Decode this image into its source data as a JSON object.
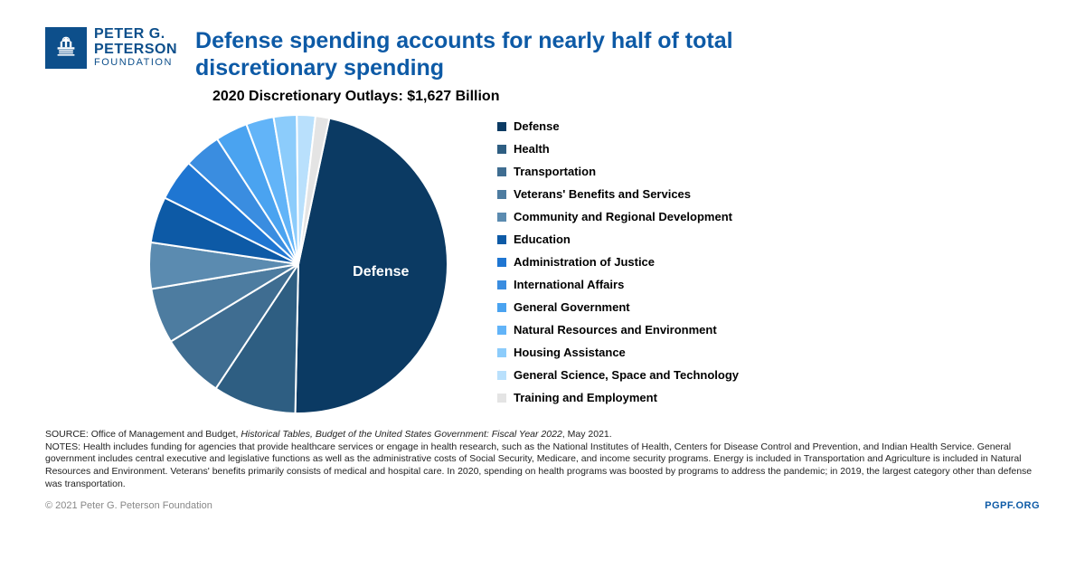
{
  "logo": {
    "line1": "PETER G.",
    "line2": "PETERSON",
    "line3": "FOUNDATION",
    "box_color": "#0d4f8b"
  },
  "title": "Defense spending accounts for nearly half of total discretionary spending",
  "subtitle": "2020 Discretionary Outlays: $1,627 Billion",
  "pie": {
    "type": "pie",
    "background_color": "#ffffff",
    "stroke_color": "#ffffff",
    "stroke_width": 2,
    "radius": 165,
    "start_angle_deg": -78,
    "slices": [
      {
        "label": "Defense",
        "value": 47,
        "color": "#0b3a63",
        "show_label": true
      },
      {
        "label": "Health",
        "value": 9,
        "color": "#2e5e82",
        "show_label": false
      },
      {
        "label": "Transportation",
        "value": 7,
        "color": "#3f6d91",
        "show_label": false
      },
      {
        "label": "Veterans' Benefits and Services",
        "value": 6,
        "color": "#4d7ca0",
        "show_label": false
      },
      {
        "label": "Community and Regional Development",
        "value": 5,
        "color": "#5b8bb0",
        "show_label": false
      },
      {
        "label": "Education",
        "value": 5,
        "color": "#0d5aa6",
        "show_label": false
      },
      {
        "label": "Administration of Justice",
        "value": 4.5,
        "color": "#1f76d2",
        "show_label": false
      },
      {
        "label": "International Affairs",
        "value": 4,
        "color": "#3a8de0",
        "show_label": false
      },
      {
        "label": "General Government",
        "value": 3.5,
        "color": "#4aa3f0",
        "show_label": false
      },
      {
        "label": "Natural Resources and Environment",
        "value": 3,
        "color": "#62b4f8",
        "show_label": false
      },
      {
        "label": "Housing Assistance",
        "value": 2.5,
        "color": "#8cccfb",
        "show_label": false
      },
      {
        "label": "General Science, Space and Technology",
        "value": 2,
        "color": "#b9e0fc",
        "show_label": false
      },
      {
        "label": "Training and Employment",
        "value": 1.5,
        "color": "#e4e4e4",
        "show_label": false
      }
    ]
  },
  "legend": {
    "swatch_size": 10,
    "font_size": 13,
    "font_weight": "bold"
  },
  "footer": {
    "source_prefix": "SOURCE: Office of Management and Budget, ",
    "source_italic": "Historical Tables, Budget of the United States Government: Fiscal Year 2022",
    "source_suffix": ", May 2021.",
    "notes": "NOTES: Health includes funding for agencies that provide healthcare services or engage in health research, such as the National Institutes of Health, Centers for Disease Control and Prevention, and Indian Health Service. General government includes central executive and legislative functions as well as the administrative costs of Social Security, Medicare, and income security programs. Energy is included in Transportation and Agriculture is included in Natural Resources and Environment. Veterans' benefits primarily consists of medical and hospital care. In 2020, spending on health programs was boosted by programs to address the pandemic; in 2019, the largest category other than defense was transportation.",
    "copyright": "© 2021 Peter G. Peterson Foundation",
    "org": "PGPF.ORG"
  }
}
